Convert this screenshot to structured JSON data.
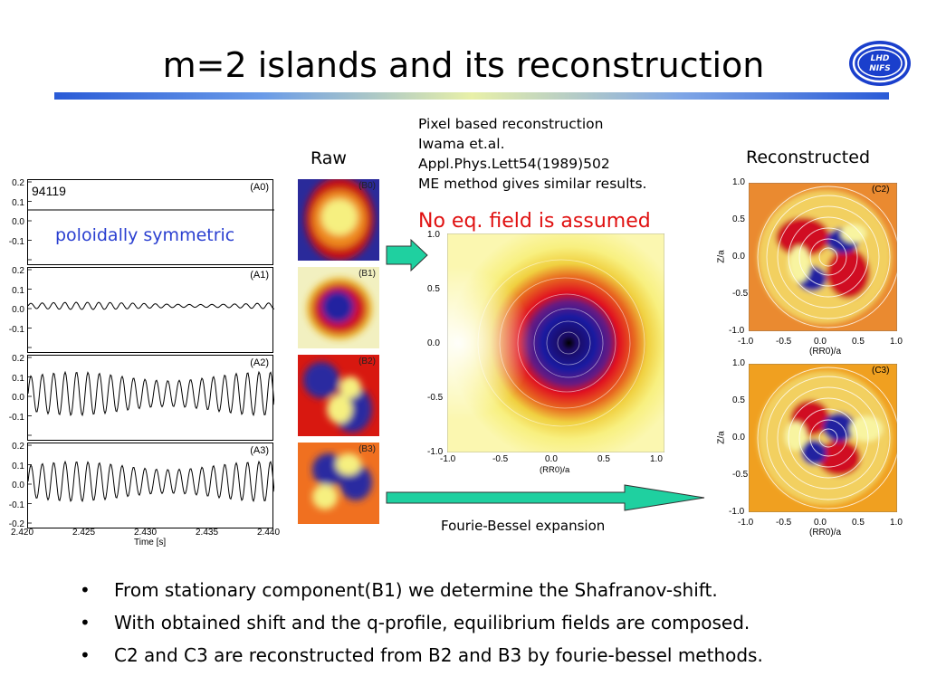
{
  "slide": {
    "title": "m=2 islands and its reconstruction"
  },
  "timeseries": {
    "shot": "94119",
    "annotation": "poloidally symmetric",
    "panels": [
      {
        "tag": "(A0)",
        "yticks": [
          "0.2",
          "0.1",
          "0.0",
          "-0.1"
        ]
      },
      {
        "tag": "(A1)",
        "yticks": [
          "0.2",
          "0.1",
          "0.0",
          "-0.1"
        ]
      },
      {
        "tag": "(A2)",
        "yticks": [
          "0.2",
          "0.1",
          "0.0",
          "-0.1"
        ]
      },
      {
        "tag": "(A3)",
        "yticks": [
          "0.2",
          "0.1",
          "0.0",
          "-0.1",
          "-0.2"
        ]
      }
    ],
    "xticks": [
      "2.420",
      "2.425",
      "2.430",
      "2.435",
      "2.440"
    ],
    "xlabel": "Time [s]"
  },
  "raw": {
    "label": "Raw",
    "tiles": [
      "(B0)",
      "(B1)",
      "(B2)",
      "(B3)"
    ]
  },
  "center": {
    "notes": [
      "Pixel based reconstruction",
      "Iwama et.al.",
      "Appl.Phys.Lett54(1989)502",
      "ME method gives similar results."
    ],
    "assumption": "No eq. field is assumed",
    "yticks": [
      "1.0",
      "0.5",
      "0.0",
      "-0.5",
      "-1.0"
    ],
    "xticks": [
      "-1.0",
      "-0.5",
      "0.0",
      "0.5",
      "1.0"
    ],
    "xlabel": "(RR0)/a",
    "expansion_label": "Fourie-Bessel expansion"
  },
  "reconstructed": {
    "label": "Reconstructed",
    "panels": [
      {
        "tag": "(C2)"
      },
      {
        "tag": "(C3)"
      }
    ],
    "yticks": [
      "1.0",
      "0.5",
      "0.0",
      "-0.5",
      "-1.0"
    ],
    "xticks": [
      "-1.0",
      "-0.5",
      "0.0",
      "0.5",
      "1.0"
    ],
    "xlabel": "(RR0)/a",
    "ylabel": "Z/a"
  },
  "bullets": [
    "From stationary component(B1) we determine the Shafranov-shift.",
    "With obtained shift and the q-profile, equilibrium fields are composed.",
    "C2 and C3 are reconstructed from B2 and B3 by fourie-bessel methods."
  ],
  "logo": {
    "text": "LHD NIFS"
  },
  "colors": {
    "annotation_blue": "#2a3fd0",
    "assumption_red": "#e01010",
    "arrow_teal": "#1fd0a0"
  },
  "icons": {
    "bullet": "•"
  }
}
